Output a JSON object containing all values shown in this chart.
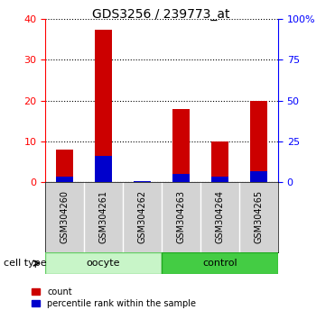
{
  "title": "GDS3256 / 239773_at",
  "samples": [
    "GSM304260",
    "GSM304261",
    "GSM304262",
    "GSM304263",
    "GSM304264",
    "GSM304265"
  ],
  "count_values": [
    8,
    37.5,
    0.2,
    18,
    10,
    20
  ],
  "percentile_values": [
    3,
    16,
    0.2,
    5,
    3,
    6.5
  ],
  "count_color": "#cc0000",
  "percentile_color": "#0000cc",
  "bar_width": 0.45,
  "ylim_left": [
    0,
    40
  ],
  "ylim_right": [
    0,
    100
  ],
  "yticks_left": [
    0,
    10,
    20,
    30,
    40
  ],
  "yticks_right": [
    0,
    25,
    50,
    75,
    100
  ],
  "yticklabels_right": [
    "0",
    "25",
    "50",
    "75",
    "100%"
  ],
  "group_oocyte": [
    0,
    1,
    2
  ],
  "group_control": [
    3,
    4,
    5
  ],
  "oocyte_color": "#c8f5c8",
  "oocyte_edge": "#66cc66",
  "control_color": "#44cc44",
  "control_edge": "#22aa22",
  "oocyte_label": "oocyte",
  "control_label": "control",
  "cell_type_label": "cell type",
  "legend_count": "count",
  "legend_percentile": "percentile rank within the sample",
  "xticklabel_bg": "#d3d3d3",
  "xticklabel_sep_color": "#aaaaaa"
}
